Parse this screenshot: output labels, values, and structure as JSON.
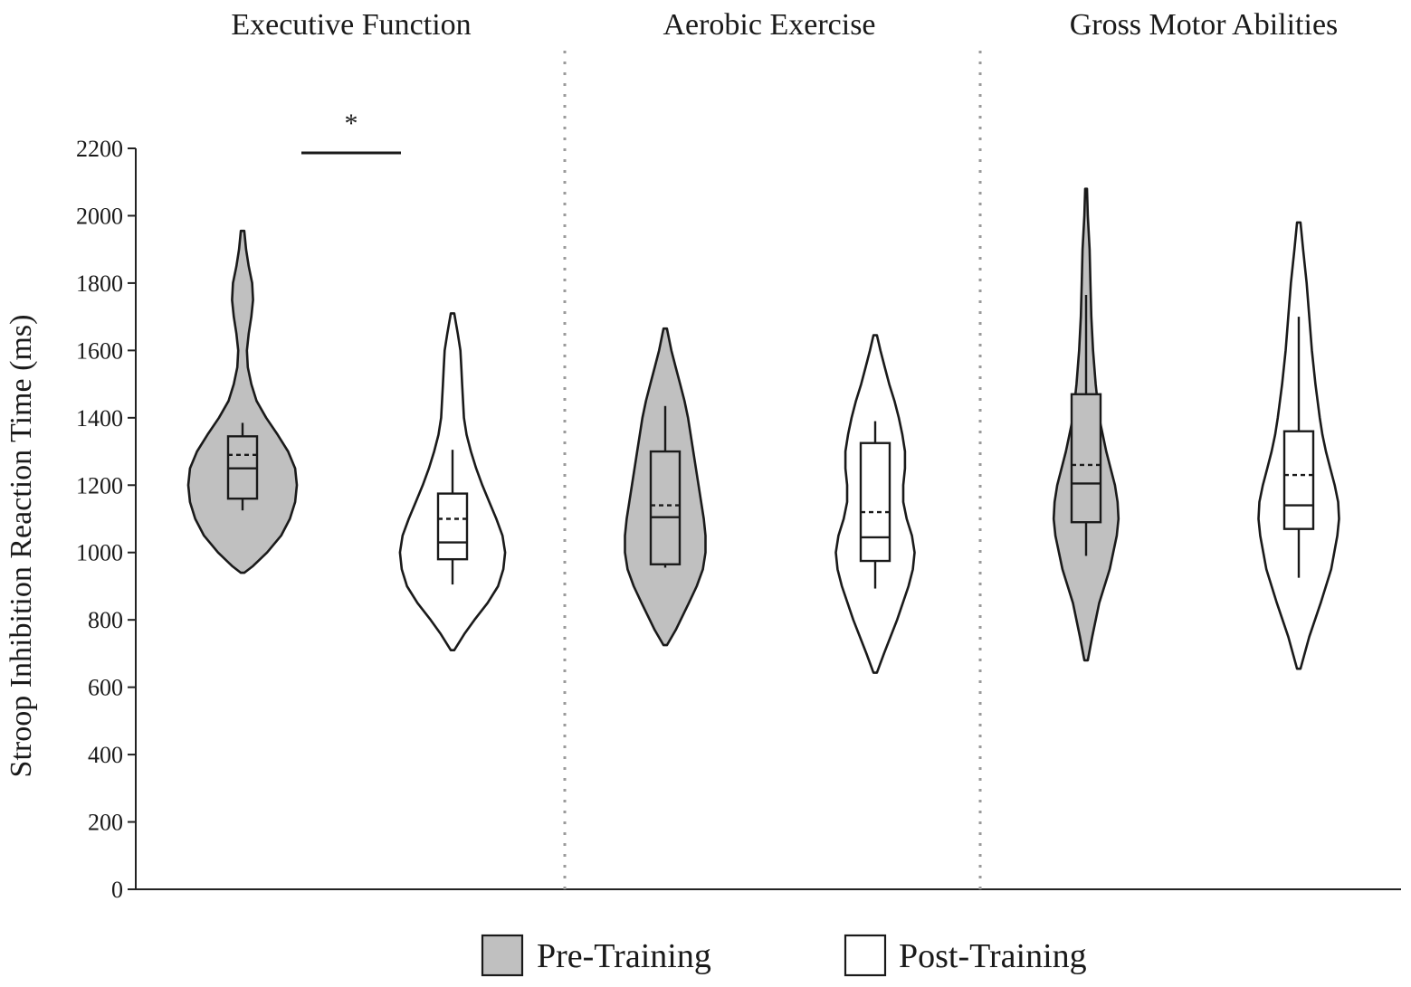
{
  "chart_data": {
    "type": "violin",
    "ylabel": "Stroop Inhibition Reaction Time (ms)",
    "ylim": [
      0,
      2200
    ],
    "yticks": [
      0,
      200,
      400,
      600,
      800,
      1000,
      1200,
      1400,
      1600,
      1800,
      2000,
      2200
    ],
    "grid": false,
    "legend_position": "bottom",
    "panels": [
      {
        "title": "Executive Function",
        "significance": "*",
        "groups": [
          {
            "name": "Pre-Training",
            "fill": "#c0c0c0",
            "min": 940,
            "max": 1955,
            "whisker_low": 1125,
            "whisker_high": 1385,
            "q1": 1160,
            "median": 1250,
            "q3": 1345,
            "mean": 1290,
            "density": [
              [
                940,
                2
              ],
              [
                960,
                12
              ],
              [
                1000,
                28
              ],
              [
                1050,
                44
              ],
              [
                1100,
                54
              ],
              [
                1150,
                60
              ],
              [
                1200,
                62
              ],
              [
                1250,
                60
              ],
              [
                1300,
                52
              ],
              [
                1350,
                40
              ],
              [
                1400,
                27
              ],
              [
                1450,
                16
              ],
              [
                1500,
                10
              ],
              [
                1550,
                6
              ],
              [
                1600,
                5
              ],
              [
                1650,
                7
              ],
              [
                1700,
                10
              ],
              [
                1750,
                12
              ],
              [
                1800,
                11
              ],
              [
                1850,
                7
              ],
              [
                1900,
                4
              ],
              [
                1955,
                2
              ]
            ]
          },
          {
            "name": "Post-Training",
            "fill": "#ffffff",
            "min": 710,
            "max": 1710,
            "whisker_low": 905,
            "whisker_high": 1305,
            "q1": 980,
            "median": 1030,
            "q3": 1175,
            "mean": 1100,
            "density": [
              [
                710,
                2
              ],
              [
                760,
                14
              ],
              [
                800,
                25
              ],
              [
                850,
                40
              ],
              [
                900,
                52
              ],
              [
                950,
                58
              ],
              [
                1000,
                60
              ],
              [
                1050,
                57
              ],
              [
                1100,
                50
              ],
              [
                1150,
                42
              ],
              [
                1200,
                34
              ],
              [
                1250,
                27
              ],
              [
                1300,
                21
              ],
              [
                1350,
                16
              ],
              [
                1400,
                13
              ],
              [
                1450,
                12
              ],
              [
                1500,
                11
              ],
              [
                1550,
                10
              ],
              [
                1600,
                9
              ],
              [
                1650,
                6
              ],
              [
                1710,
                2
              ]
            ]
          }
        ]
      },
      {
        "title": "Aerobic Exercise",
        "groups": [
          {
            "name": "Pre-Training",
            "fill": "#c0c0c0",
            "min": 725,
            "max": 1665,
            "whisker_low": 955,
            "whisker_high": 1435,
            "q1": 965,
            "median": 1105,
            "q3": 1300,
            "mean": 1140,
            "density": [
              [
                725,
                2
              ],
              [
                770,
                12
              ],
              [
                850,
                27
              ],
              [
                900,
                36
              ],
              [
                950,
                43
              ],
              [
                1000,
                46
              ],
              [
                1050,
                46
              ],
              [
                1100,
                44
              ],
              [
                1150,
                41
              ],
              [
                1200,
                38
              ],
              [
                1250,
                35
              ],
              [
                1300,
                32
              ],
              [
                1350,
                29
              ],
              [
                1400,
                26
              ],
              [
                1450,
                22
              ],
              [
                1500,
                17
              ],
              [
                1550,
                12
              ],
              [
                1600,
                7
              ],
              [
                1665,
                2
              ]
            ]
          },
          {
            "name": "Post-Training",
            "fill": "#ffffff",
            "min": 643,
            "max": 1645,
            "whisker_low": 893,
            "whisker_high": 1390,
            "q1": 975,
            "median": 1045,
            "q3": 1325,
            "mean": 1120,
            "density": [
              [
                643,
                2
              ],
              [
                700,
                10
              ],
              [
                800,
                25
              ],
              [
                900,
                38
              ],
              [
                950,
                43
              ],
              [
                1000,
                45
              ],
              [
                1050,
                42
              ],
              [
                1100,
                36
              ],
              [
                1150,
                32
              ],
              [
                1200,
                32
              ],
              [
                1250,
                34
              ],
              [
                1300,
                34
              ],
              [
                1350,
                31
              ],
              [
                1400,
                27
              ],
              [
                1450,
                22
              ],
              [
                1500,
                16
              ],
              [
                1550,
                11
              ],
              [
                1600,
                6
              ],
              [
                1645,
                2
              ]
            ]
          }
        ]
      },
      {
        "title": "Gross Motor Abilities",
        "groups": [
          {
            "name": "Pre-Training",
            "fill": "#c0c0c0",
            "min": 680,
            "max": 2080,
            "whisker_low": 990,
            "whisker_high": 1765,
            "q1": 1090,
            "median": 1205,
            "q3": 1470,
            "mean": 1260,
            "density": [
              [
                680,
                2
              ],
              [
                750,
                7
              ],
              [
                850,
                15
              ],
              [
                950,
                27
              ],
              [
                1050,
                35
              ],
              [
                1100,
                37
              ],
              [
                1150,
                36
              ],
              [
                1200,
                33
              ],
              [
                1250,
                28
              ],
              [
                1300,
                23
              ],
              [
                1350,
                19
              ],
              [
                1400,
                15
              ],
              [
                1500,
                11
              ],
              [
                1600,
                8
              ],
              [
                1700,
                6
              ],
              [
                1800,
                5
              ],
              [
                1900,
                4
              ],
              [
                2000,
                2
              ],
              [
                2080,
                1
              ]
            ]
          },
          {
            "name": "Post-Training",
            "fill": "#ffffff",
            "min": 655,
            "max": 1980,
            "whisker_low": 925,
            "whisker_high": 1700,
            "q1": 1070,
            "median": 1140,
            "q3": 1360,
            "mean": 1230,
            "density": [
              [
                655,
                2
              ],
              [
                750,
                12
              ],
              [
                850,
                25
              ],
              [
                950,
                37
              ],
              [
                1050,
                44
              ],
              [
                1100,
                46
              ],
              [
                1150,
                45
              ],
              [
                1200,
                41
              ],
              [
                1250,
                36
              ],
              [
                1300,
                31
              ],
              [
                1350,
                27
              ],
              [
                1400,
                24
              ],
              [
                1500,
                19
              ],
              [
                1600,
                15
              ],
              [
                1700,
                12
              ],
              [
                1800,
                9
              ],
              [
                1900,
                5
              ],
              [
                1980,
                2
              ]
            ]
          }
        ]
      }
    ],
    "legend": [
      {
        "label": "Pre-Training",
        "fill": "#c0c0c0"
      },
      {
        "label": "Post-Training",
        "fill": "#ffffff"
      }
    ]
  }
}
